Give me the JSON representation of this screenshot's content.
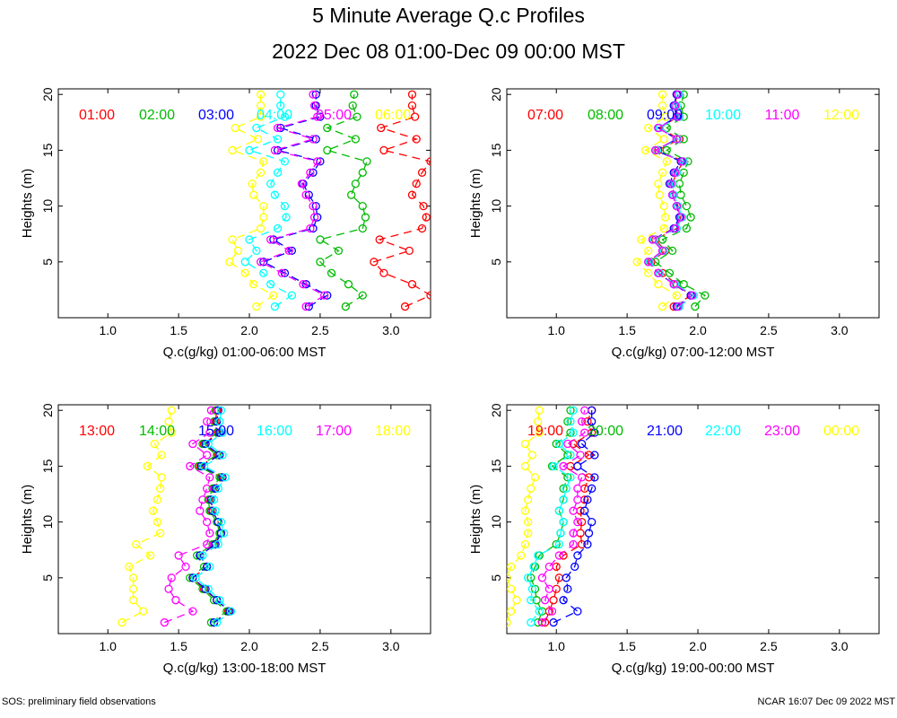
{
  "title": "5 Minute Average Q.c Profiles",
  "subtitle": "2022 Dec 08 01:00-Dec 09 00:00 MST",
  "footer_left": "SOS: preliminary field observations",
  "footer_right": "NCAR 16:07 Dec 09 2022 MST",
  "colors": [
    "#ff0000",
    "#00bb00",
    "#0000ff",
    "#00ffff",
    "#ff00ff",
    "#ffff00"
  ],
  "chart_data": [
    {
      "type": "line",
      "xlabel": "Q.c(g/kg) 01:00-06:00 MST",
      "ylabel": "Heights (m)",
      "xlim": [
        0.65,
        3.28
      ],
      "ylim": [
        0,
        20.5
      ],
      "xticks": [
        1.0,
        1.5,
        2.0,
        2.5,
        3.0
      ],
      "yticks": [
        5,
        10,
        15,
        20
      ],
      "heights": [
        1,
        2,
        3,
        4,
        5,
        6,
        7,
        8,
        9,
        10,
        11,
        12,
        13,
        14,
        15,
        16,
        17,
        18,
        19,
        20
      ],
      "series": [
        {
          "name": "01:00",
          "values": [
            3.1,
            3.28,
            3.15,
            2.95,
            2.88,
            3.13,
            2.92,
            3.22,
            3.25,
            3.23,
            3.15,
            3.18,
            3.22,
            3.28,
            2.95,
            3.18,
            2.93,
            3.17,
            3.15,
            3.15
          ]
        },
        {
          "name": "02:00",
          "values": [
            2.68,
            2.8,
            2.7,
            2.58,
            2.5,
            2.63,
            2.5,
            2.8,
            2.82,
            2.8,
            2.72,
            2.75,
            2.8,
            2.83,
            2.55,
            2.75,
            2.55,
            2.76,
            2.73,
            2.74
          ]
        },
        {
          "name": "03:00",
          "values": [
            2.42,
            2.55,
            2.4,
            2.25,
            2.1,
            2.3,
            2.17,
            2.45,
            2.48,
            2.47,
            2.42,
            2.38,
            2.45,
            2.5,
            2.2,
            2.47,
            2.22,
            2.5,
            2.47,
            2.47
          ]
        },
        {
          "name": "04:00",
          "values": [
            2.18,
            2.3,
            2.15,
            2.1,
            1.97,
            2.05,
            2.0,
            2.2,
            2.26,
            2.25,
            2.18,
            2.15,
            2.2,
            2.25,
            2.0,
            2.2,
            2.05,
            2.25,
            2.22,
            2.22
          ]
        },
        {
          "name": "05:00",
          "values": [
            2.4,
            2.53,
            2.38,
            2.23,
            2.08,
            2.28,
            2.15,
            2.43,
            2.46,
            2.45,
            2.4,
            2.37,
            2.43,
            2.48,
            2.18,
            2.45,
            2.2,
            2.48,
            2.46,
            2.45
          ]
        },
        {
          "name": "06:00",
          "values": [
            2.05,
            2.17,
            2.03,
            1.97,
            1.86,
            1.92,
            1.88,
            2.08,
            2.1,
            2.1,
            2.03,
            2.02,
            2.08,
            2.1,
            1.88,
            2.06,
            1.9,
            2.08,
            2.08,
            2.08
          ]
        }
      ]
    },
    {
      "type": "line",
      "xlabel": "Q.c(g/kg) 07:00-12:00 MST",
      "ylabel": "Heights (m)",
      "xlim": [
        0.65,
        3.28
      ],
      "ylim": [
        0,
        20.5
      ],
      "xticks": [
        1.0,
        1.5,
        2.0,
        2.5,
        3.0
      ],
      "yticks": [
        5,
        10,
        15,
        20
      ],
      "heights": [
        1,
        2,
        3,
        4,
        5,
        6,
        7,
        8,
        9,
        10,
        11,
        12,
        13,
        14,
        15,
        16,
        17,
        18,
        19,
        20
      ],
      "series": [
        {
          "name": "07:00",
          "values": [
            1.83,
            1.95,
            1.85,
            1.75,
            1.67,
            1.77,
            1.7,
            1.85,
            1.88,
            1.86,
            1.83,
            1.82,
            1.85,
            1.9,
            1.72,
            1.87,
            1.73,
            1.86,
            1.84,
            1.85
          ]
        },
        {
          "name": "08:00",
          "values": [
            1.98,
            2.05,
            1.9,
            1.8,
            1.7,
            1.82,
            1.75,
            1.92,
            1.95,
            1.92,
            1.88,
            1.87,
            1.9,
            1.93,
            1.78,
            1.9,
            1.78,
            1.9,
            1.88,
            1.9
          ]
        },
        {
          "name": "09:00",
          "values": [
            1.85,
            1.95,
            1.83,
            1.72,
            1.65,
            1.75,
            1.68,
            1.83,
            1.87,
            1.85,
            1.82,
            1.8,
            1.83,
            1.88,
            1.7,
            1.85,
            1.72,
            1.85,
            1.83,
            1.85
          ]
        },
        {
          "name": "10:00",
          "values": [
            1.87,
            1.97,
            1.84,
            1.73,
            1.66,
            1.76,
            1.69,
            1.85,
            1.89,
            1.86,
            1.83,
            1.82,
            1.85,
            1.9,
            1.71,
            1.86,
            1.73,
            1.87,
            1.85,
            1.87
          ]
        },
        {
          "name": "11:00",
          "values": [
            1.86,
            1.96,
            1.83,
            1.72,
            1.65,
            1.75,
            1.68,
            1.84,
            1.88,
            1.85,
            1.82,
            1.81,
            1.84,
            1.89,
            1.7,
            1.85,
            1.72,
            1.86,
            1.84,
            1.86
          ]
        },
        {
          "name": "12:00",
          "values": [
            1.75,
            1.85,
            1.72,
            1.65,
            1.57,
            1.65,
            1.6,
            1.76,
            1.77,
            1.76,
            1.73,
            1.72,
            1.75,
            1.78,
            1.63,
            1.76,
            1.65,
            1.77,
            1.75,
            1.75
          ]
        }
      ]
    },
    {
      "type": "line",
      "xlabel": "Q.c(g/kg) 13:00-18:00 MST",
      "ylabel": "Heights (m)",
      "xlim": [
        0.65,
        3.28
      ],
      "ylim": [
        0,
        20.5
      ],
      "xticks": [
        1.0,
        1.5,
        2.0,
        2.5,
        3.0
      ],
      "yticks": [
        5,
        10,
        15,
        20
      ],
      "heights": [
        1,
        2,
        3,
        4,
        5,
        6,
        7,
        8,
        9,
        10,
        11,
        12,
        13,
        14,
        15,
        16,
        17,
        18,
        19,
        20
      ],
      "series": [
        {
          "name": "13:00",
          "values": [
            1.75,
            1.85,
            1.77,
            1.68,
            1.6,
            1.7,
            1.65,
            1.75,
            1.8,
            1.78,
            1.73,
            1.72,
            1.75,
            1.8,
            1.65,
            1.78,
            1.68,
            1.78,
            1.76,
            1.77
          ]
        },
        {
          "name": "14:00",
          "values": [
            1.73,
            1.84,
            1.75,
            1.67,
            1.58,
            1.68,
            1.63,
            1.74,
            1.79,
            1.77,
            1.72,
            1.71,
            1.74,
            1.79,
            1.64,
            1.77,
            1.67,
            1.77,
            1.75,
            1.76
          ]
        },
        {
          "name": "15:00",
          "values": [
            1.75,
            1.86,
            1.77,
            1.69,
            1.6,
            1.7,
            1.65,
            1.76,
            1.8,
            1.78,
            1.74,
            1.73,
            1.76,
            1.81,
            1.66,
            1.79,
            1.69,
            1.79,
            1.77,
            1.78
          ]
        },
        {
          "name": "16:00",
          "values": [
            1.77,
            1.87,
            1.79,
            1.71,
            1.62,
            1.72,
            1.67,
            1.78,
            1.82,
            1.8,
            1.76,
            1.75,
            1.78,
            1.83,
            1.68,
            1.81,
            1.71,
            1.81,
            1.79,
            1.8
          ]
        },
        {
          "name": "17:00",
          "values": [
            1.4,
            1.6,
            1.48,
            1.43,
            1.45,
            1.55,
            1.5,
            1.7,
            1.72,
            1.7,
            1.65,
            1.67,
            1.7,
            1.72,
            1.58,
            1.7,
            1.6,
            1.72,
            1.7,
            1.73
          ]
        },
        {
          "name": "18:00",
          "values": [
            1.1,
            1.25,
            1.18,
            1.18,
            1.18,
            1.15,
            1.3,
            1.2,
            1.37,
            1.35,
            1.32,
            1.35,
            1.37,
            1.38,
            1.28,
            1.38,
            1.33,
            1.45,
            1.43,
            1.45
          ]
        }
      ]
    },
    {
      "type": "line",
      "xlabel": "Q.c(g/kg) 19:00-00:00 MST",
      "ylabel": "Heights (m)",
      "xlim": [
        0.65,
        3.28
      ],
      "ylim": [
        0,
        20.5
      ],
      "xticks": [
        1.0,
        1.5,
        2.0,
        2.5,
        3.0
      ],
      "yticks": [
        5,
        10,
        15,
        20
      ],
      "heights": [
        1,
        2,
        3,
        4,
        5,
        6,
        7,
        8,
        9,
        10,
        11,
        12,
        13,
        14,
        15,
        16,
        17,
        18,
        19,
        20
      ],
      "series": [
        {
          "name": "19:00",
          "values": [
            0.92,
            0.95,
            0.98,
            1.0,
            1.02,
            1.0,
            1.05,
            1.18,
            1.17,
            1.18,
            1.17,
            1.2,
            1.2,
            1.23,
            1.1,
            1.23,
            1.12,
            1.25,
            1.22,
            1.25
          ]
        },
        {
          "name": "20:00",
          "values": [
            0.87,
            0.9,
            0.86,
            0.85,
            0.82,
            0.85,
            0.88,
            1.0,
            1.03,
            1.05,
            1.02,
            1.05,
            1.05,
            1.08,
            0.97,
            1.08,
            1.0,
            1.1,
            1.08,
            1.1
          ]
        },
        {
          "name": "21:00",
          "values": [
            0.98,
            1.15,
            1.05,
            1.08,
            1.07,
            1.13,
            1.15,
            1.22,
            1.23,
            1.25,
            1.2,
            1.22,
            1.25,
            1.27,
            1.15,
            1.27,
            1.18,
            1.27,
            1.25,
            1.25
          ]
        },
        {
          "name": "22:00",
          "values": [
            0.82,
            0.88,
            0.82,
            0.83,
            0.8,
            0.84,
            0.87,
            1.02,
            1.03,
            1.05,
            1.02,
            1.05,
            1.07,
            1.1,
            0.98,
            1.1,
            1.02,
            1.12,
            1.1,
            1.12
          ]
        },
        {
          "name": "23:00",
          "values": [
            0.9,
            0.97,
            0.92,
            0.95,
            0.9,
            0.95,
            1.02,
            1.12,
            1.12,
            1.15,
            1.12,
            1.15,
            1.15,
            1.18,
            1.05,
            1.17,
            1.08,
            1.2,
            1.18,
            1.2
          ]
        },
        {
          "name": "00:00",
          "values": [
            0.65,
            0.68,
            0.72,
            0.68,
            0.65,
            0.68,
            0.75,
            0.78,
            0.8,
            0.8,
            0.78,
            0.8,
            0.82,
            0.85,
            0.78,
            0.83,
            0.78,
            0.88,
            0.87,
            0.88
          ]
        }
      ]
    }
  ]
}
